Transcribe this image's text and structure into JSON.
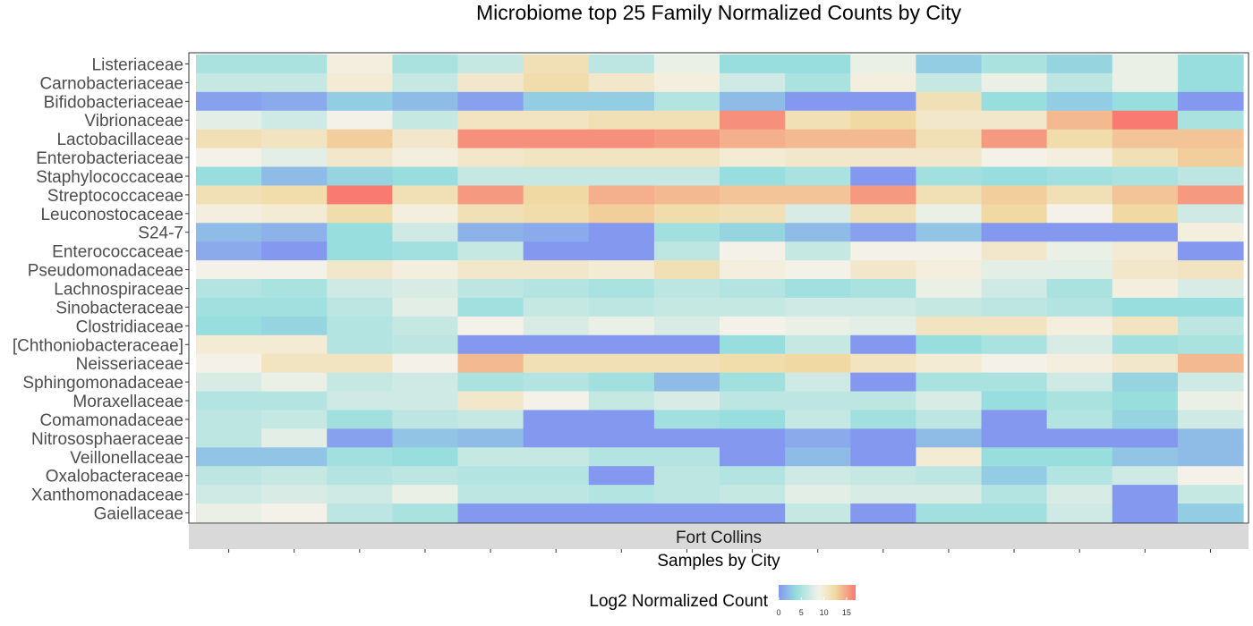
{
  "chart_data": {
    "type": "heatmap",
    "title": "Microbiome top 25 Family Normalized Counts by City",
    "xlabel": "Samples by City",
    "facet_label": "Fort Collins",
    "rows": [
      "Listeriaceae",
      "Carnobacteriaceae",
      "Bifidobacteriaceae",
      "Vibrionaceae",
      "Lactobacillaceae",
      "Enterobacteriaceae",
      "Staphylococcaceae",
      "Streptococcaceae",
      "Leuconostocaceae",
      "S24-7",
      "Enterococcaceae",
      "Pseudomonadaceae",
      "Lachnospiraceae",
      "Sinobacteraceae",
      "Clostridiaceae",
      "[Chthoniobacteraceae]",
      "Neisseriaceae",
      "Sphingomonadaceae",
      "Moraxellaceae",
      "Comamonadaceae",
      "Nitrososphaeraceae",
      "Veillonellaceae",
      "Oxalobacteraceae",
      "Xanthomonadaceae",
      "Gaiellaceae"
    ],
    "n_samples": 16,
    "values": [
      [
        5,
        5,
        9.5,
        5,
        6.5,
        11.5,
        6,
        8.5,
        4,
        4,
        8.5,
        3,
        5,
        3.5,
        8.5,
        4
      ],
      [
        6.5,
        6.5,
        10,
        6.5,
        10.5,
        12,
        10.5,
        9.5,
        7,
        5,
        9.5,
        6.5,
        8.5,
        6,
        8.5,
        4
      ],
      [
        0.5,
        1,
        3,
        2,
        0.5,
        3,
        3,
        5.5,
        2,
        0,
        0,
        11.5,
        4,
        3,
        4,
        0
      ],
      [
        8,
        7,
        9,
        6.5,
        11,
        11,
        11.5,
        11.5,
        16,
        11.5,
        12.5,
        10.5,
        10.5,
        14,
        17,
        5
      ],
      [
        11.5,
        11,
        13,
        10.5,
        16,
        16,
        16,
        15.5,
        14.5,
        14,
        14,
        11.5,
        15.5,
        12,
        13.5,
        13.5
      ],
      [
        9,
        8,
        10.5,
        9.5,
        10.5,
        11,
        11,
        11,
        10,
        10.5,
        10.5,
        10.5,
        9,
        9.5,
        11.5,
        13
      ],
      [
        4,
        2,
        3.5,
        4,
        6.5,
        6.5,
        6.5,
        6.5,
        4,
        5,
        0,
        4.5,
        4,
        4.5,
        5,
        6
      ],
      [
        11.5,
        12,
        17,
        11.5,
        15.5,
        12.5,
        14.5,
        14,
        13.5,
        13.5,
        15.5,
        11.5,
        13,
        11.5,
        13.5,
        15.5
      ],
      [
        9.5,
        10,
        12,
        9.5,
        11.5,
        12,
        13,
        12,
        11.5,
        7.5,
        11.5,
        8.5,
        12.5,
        9,
        12.5,
        7
      ],
      [
        2,
        1.5,
        4,
        7,
        1.5,
        1,
        0,
        4.5,
        3.5,
        2,
        0.5,
        2.5,
        0,
        0,
        0,
        9.5
      ],
      [
        1,
        0,
        4,
        4.5,
        6.5,
        0,
        0,
        6,
        9,
        6.5,
        9,
        9,
        10.5,
        8.5,
        10,
        0
      ],
      [
        9,
        9,
        10.5,
        9.5,
        10.5,
        10.5,
        10,
        11.5,
        9.5,
        9,
        10.5,
        9.5,
        8,
        8,
        10.5,
        11
      ],
      [
        5.5,
        5,
        7,
        7.5,
        6,
        5.5,
        5,
        6,
        5.5,
        4.5,
        5,
        8.5,
        7,
        5,
        9.5,
        7.5
      ],
      [
        4.5,
        4.5,
        6,
        8,
        4.5,
        6.5,
        6,
        6.5,
        6.5,
        7,
        7,
        6.5,
        6,
        5.5,
        4,
        4
      ],
      [
        4,
        3.5,
        5.5,
        6.5,
        9,
        7.5,
        8.5,
        7.5,
        9,
        8.5,
        8,
        11,
        11,
        9.5,
        11,
        6
      ],
      [
        10,
        10,
        5.5,
        6,
        0,
        0,
        0,
        0,
        4,
        6.5,
        0,
        4,
        5,
        7.5,
        4.5,
        5
      ],
      [
        9,
        11,
        11,
        9,
        14,
        11.5,
        11.5,
        11.5,
        12,
        12.5,
        11,
        10,
        9,
        9.5,
        10.5,
        14
      ],
      [
        7.5,
        8.5,
        6.5,
        7,
        5,
        5.5,
        4.5,
        2,
        4.5,
        7,
        0,
        5,
        5,
        7,
        3.5,
        7
      ],
      [
        5.5,
        5.5,
        7,
        7,
        10.5,
        9,
        6.5,
        7.5,
        6,
        6,
        6,
        7.5,
        4,
        5,
        4,
        8.5
      ],
      [
        6,
        6.5,
        4.5,
        6,
        6.5,
        0,
        0,
        4.5,
        4,
        6.5,
        4.5,
        6,
        0,
        5.5,
        3.5,
        7
      ],
      [
        6,
        8,
        0.5,
        2.5,
        2,
        0,
        0,
        0,
        0,
        1,
        0,
        2,
        0,
        0,
        0,
        2
      ],
      [
        2.5,
        2.5,
        4.5,
        4,
        6.5,
        6.5,
        5.5,
        5.5,
        0,
        2,
        0,
        10,
        4,
        4,
        2.5,
        2
      ],
      [
        6,
        6.5,
        5.5,
        6,
        5.5,
        5.5,
        0,
        6,
        5.5,
        7,
        6.5,
        6,
        3,
        5.5,
        7,
        9
      ],
      [
        7,
        7.5,
        7,
        8.5,
        6,
        6,
        5.5,
        6,
        6.5,
        8,
        7.5,
        7.5,
        5.5,
        7.5,
        0,
        6.5
      ],
      [
        8.5,
        9,
        6,
        5,
        0,
        0,
        0,
        0,
        0,
        6.5,
        0,
        4.5,
        4.5,
        7,
        0,
        3
      ]
    ],
    "colorbar": {
      "title": "Log2 Normalized Count",
      "range": [
        0,
        17
      ],
      "ticks": [
        "0",
        "5",
        "10",
        "15"
      ],
      "tick_values": [
        0,
        5,
        10,
        15
      ],
      "stops": [
        {
          "v": 0,
          "color": "#8598f0"
        },
        {
          "v": 4,
          "color": "#98dede"
        },
        {
          "v": 9,
          "color": "#f4f2e8"
        },
        {
          "v": 12.5,
          "color": "#f0d9a2"
        },
        {
          "v": 17,
          "color": "#f87a70"
        }
      ]
    },
    "grid": false,
    "legend_position": "bottom"
  }
}
